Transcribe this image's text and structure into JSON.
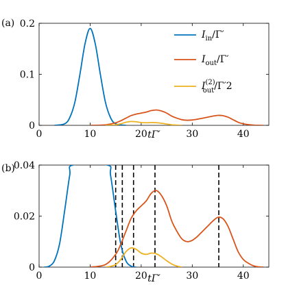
{
  "chart_data": [
    {
      "panel_label": "(a)",
      "type": "line",
      "xlabel": "tΓ′",
      "ylabel": "",
      "xlim": [
        0,
        45
      ],
      "ylim": [
        0,
        0.2
      ],
      "xticks": [
        0,
        10,
        20,
        30,
        40
      ],
      "yticks": [
        0,
        0.1,
        0.2
      ],
      "ytick_labels": [
        "0",
        "0.1",
        "0.2"
      ],
      "legend_position": "top-right",
      "grid": false,
      "series": [
        {
          "name": "I_in/Γ′",
          "legend_main": "I",
          "legend_sub": "in",
          "legend_sup": "",
          "legend_tail": "/Γ′",
          "color": "#0072BD",
          "x": [
            3,
            5,
            6,
            7,
            8,
            9,
            10,
            11,
            12,
            13,
            14,
            15,
            17
          ],
          "y": [
            0,
            0.003,
            0.015,
            0.045,
            0.1,
            0.16,
            0.19,
            0.16,
            0.1,
            0.045,
            0.015,
            0.003,
            0
          ]
        },
        {
          "name": "I_out/Γ′",
          "legend_main": "I",
          "legend_sub": "out",
          "legend_sup": "",
          "legend_tail": "/Γ′",
          "color": "#D95319",
          "x": [
            10,
            13,
            15,
            16,
            17,
            18,
            19,
            20,
            21,
            22,
            23,
            24,
            25,
            26,
            27,
            28,
            29,
            30,
            31,
            32,
            33,
            34,
            35,
            36,
            37,
            38,
            39,
            40,
            41,
            42,
            43,
            44
          ],
          "y": [
            0,
            0.001,
            0.005,
            0.009,
            0.014,
            0.019,
            0.022,
            0.024,
            0.026,
            0.029,
            0.03,
            0.028,
            0.024,
            0.018,
            0.014,
            0.011,
            0.01,
            0.0105,
            0.012,
            0.014,
            0.016,
            0.018,
            0.0195,
            0.019,
            0.016,
            0.011,
            0.006,
            0.003,
            0.0015,
            0.0005,
            0.0001,
            0
          ]
        },
        {
          "name": "I_out^(2)/Γ′2",
          "legend_main": "I",
          "legend_sub": "out",
          "legend_sup": "(2)",
          "legend_tail": "/Γ′2",
          "color": "#EDB120",
          "x": [
            13,
            14,
            15,
            16,
            17,
            18,
            19,
            20,
            21,
            22,
            23,
            24,
            25,
            26,
            27,
            28
          ],
          "y": [
            0,
            0.0003,
            0.001,
            0.003,
            0.006,
            0.0075,
            0.007,
            0.0055,
            0.005,
            0.0055,
            0.0052,
            0.004,
            0.0025,
            0.0012,
            0.0004,
            0
          ]
        }
      ]
    },
    {
      "panel_label": "(b)",
      "type": "line",
      "xlabel": "tΓ′",
      "ylabel": "",
      "xlim": [
        0,
        45
      ],
      "ylim": [
        0,
        0.04
      ],
      "xticks": [
        0,
        10,
        20,
        30,
        40
      ],
      "yticks": [
        0,
        0.02,
        0.04
      ],
      "ytick_labels": [
        "0",
        "0.02",
        "0.04"
      ],
      "grid": false,
      "vlines": [
        15,
        16.3,
        18.5,
        22.7,
        35.2
      ],
      "series": [
        {
          "name": "I_in/Γ′",
          "color": "#0072BD",
          "x": [
            1,
            2,
            3,
            4,
            5,
            6,
            6.6,
            13.4,
            14,
            15,
            16,
            17,
            18,
            19
          ],
          "y": [
            0,
            0.0004,
            0.0025,
            0.009,
            0.022,
            0.036,
            0.04,
            0.04,
            0.036,
            0.022,
            0.009,
            0.0025,
            0.0004,
            0
          ]
        },
        {
          "name": "I_out/Γ′",
          "color": "#D95319",
          "x": [
            10,
            13,
            15,
            16,
            17,
            18,
            19,
            20,
            21,
            22,
            23,
            24,
            25,
            26,
            27,
            28,
            29,
            30,
            31,
            32,
            33,
            34,
            35,
            36,
            37,
            38,
            39,
            40,
            41,
            42,
            43,
            44
          ],
          "y": [
            0,
            0.001,
            0.005,
            0.009,
            0.014,
            0.019,
            0.022,
            0.024,
            0.026,
            0.029,
            0.03,
            0.028,
            0.024,
            0.018,
            0.014,
            0.011,
            0.01,
            0.0105,
            0.012,
            0.014,
            0.016,
            0.018,
            0.0195,
            0.019,
            0.016,
            0.011,
            0.006,
            0.003,
            0.0015,
            0.0005,
            0.0001,
            0
          ]
        },
        {
          "name": "I_out^(2)/Γ′2",
          "color": "#EDB120",
          "x": [
            13,
            14,
            15,
            16,
            17,
            18,
            19,
            20,
            21,
            22,
            23,
            24,
            25,
            26,
            27,
            28
          ],
          "y": [
            0,
            0.0003,
            0.001,
            0.003,
            0.006,
            0.0075,
            0.007,
            0.0055,
            0.005,
            0.0055,
            0.0052,
            0.004,
            0.0025,
            0.0012,
            0.0004,
            0
          ]
        }
      ]
    }
  ]
}
